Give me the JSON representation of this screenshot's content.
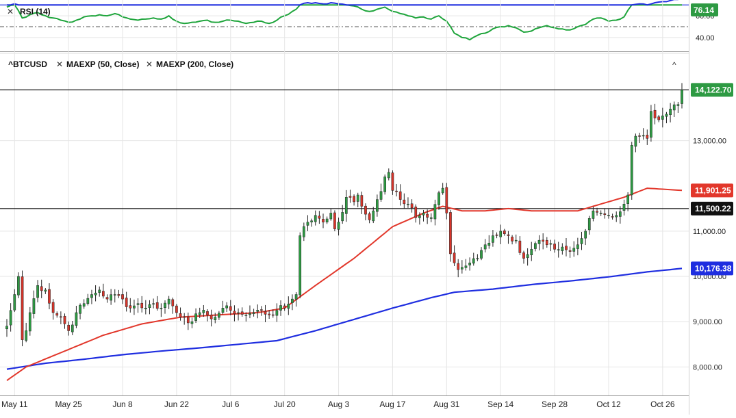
{
  "rsi_panel": {
    "title": "RSI (14)",
    "close_icon": "close-icon",
    "value_label": "76.14",
    "ticks": [
      {
        "v": 60,
        "label": "60.00"
      },
      {
        "v": 40,
        "label": "40.00"
      }
    ],
    "overbought": 70,
    "midline": 50,
    "range": [
      28,
      72
    ]
  },
  "price_panel": {
    "symbol": "^BTCUSD",
    "indicators": [
      {
        "icon": "close-icon",
        "label": "MAEXP (50, Close)"
      },
      {
        "icon": "close-icon",
        "label": "MAEXP (200, Close)"
      }
    ],
    "collapse_icon": "chevron-up-icon",
    "ylim": [
      7400,
      14900
    ],
    "y_ticks": [
      {
        "v": 13000,
        "label": "13,000.00"
      },
      {
        "v": 11000,
        "label": "11,000.00"
      },
      {
        "v": 10000,
        "label": "10,000.00"
      },
      {
        "v": 9000,
        "label": "9,000.00"
      },
      {
        "v": 8000,
        "label": "8,000.00"
      }
    ],
    "last_price": {
      "v": 14122.7,
      "label": "14,122.70",
      "color": "#2e9a43"
    },
    "ema50_label": {
      "v": 11901.25,
      "label": "11,901.25",
      "color": "#e2372b"
    },
    "level_label": {
      "v": 11500.22,
      "label": "11,500.22",
      "color": "#111111"
    },
    "ema200_label": {
      "v": 10176.38,
      "label": "10,176.38",
      "color": "#1f2ee0"
    },
    "horizontal_lines": [
      14122.7,
      11500.22
    ]
  },
  "x_axis": {
    "labels": [
      {
        "i": 2,
        "label": "May 11"
      },
      {
        "i": 16,
        "label": "May 25"
      },
      {
        "i": 30,
        "label": "Jun 8"
      },
      {
        "i": 44,
        "label": "Jun 22"
      },
      {
        "i": 58,
        "label": "Jul 6"
      },
      {
        "i": 72,
        "label": "Jul 20"
      },
      {
        "i": 86,
        "label": "Aug 3"
      },
      {
        "i": 100,
        "label": "Aug 17"
      },
      {
        "i": 114,
        "label": "Aug 31"
      },
      {
        "i": 128,
        "label": "Sep 14"
      },
      {
        "i": 142,
        "label": "Sep 28"
      },
      {
        "i": 156,
        "label": "Oct 12"
      },
      {
        "i": 170,
        "label": "Oct 26"
      }
    ]
  },
  "colors": {
    "up": "#2e9a43",
    "down": "#d8342a",
    "rsi": "#1fa53c",
    "rsi_over": "#1f2ee0",
    "ema50": "#e2372b",
    "ema200": "#1f2ee0",
    "grid": "#e5e5e5"
  },
  "chart_data": {
    "type": "candlestick",
    "title": "^BTCUSD",
    "series_names": [
      "MAEXP (50, Close)",
      "MAEXP (200, Close)"
    ],
    "close_keyframes": [
      [
        0,
        8900
      ],
      [
        2,
        9600
      ],
      [
        3,
        10000
      ],
      [
        4,
        8600
      ],
      [
        5,
        8800
      ],
      [
        6,
        9200
      ],
      [
        8,
        9800
      ],
      [
        10,
        9700
      ],
      [
        12,
        9200
      ],
      [
        14,
        9100
      ],
      [
        16,
        8800
      ],
      [
        18,
        9200
      ],
      [
        20,
        9400
      ],
      [
        22,
        9600
      ],
      [
        24,
        9700
      ],
      [
        26,
        9500
      ],
      [
        28,
        9600
      ],
      [
        30,
        9500
      ],
      [
        32,
        9300
      ],
      [
        34,
        9400
      ],
      [
        36,
        9300
      ],
      [
        38,
        9400
      ],
      [
        40,
        9300
      ],
      [
        42,
        9500
      ],
      [
        44,
        9200
      ],
      [
        46,
        9100
      ],
      [
        48,
        9000
      ],
      [
        50,
        9200
      ],
      [
        52,
        9150
      ],
      [
        54,
        9100
      ],
      [
        56,
        9300
      ],
      [
        58,
        9250
      ],
      [
        60,
        9200
      ],
      [
        62,
        9150
      ],
      [
        64,
        9200
      ],
      [
        66,
        9250
      ],
      [
        68,
        9150
      ],
      [
        70,
        9250
      ],
      [
        72,
        9300
      ],
      [
        74,
        9500
      ],
      [
        75,
        9600
      ],
      [
        76,
        10900
      ],
      [
        77,
        11100
      ],
      [
        78,
        11200
      ],
      [
        80,
        11350
      ],
      [
        82,
        11200
      ],
      [
        84,
        11400
      ],
      [
        85,
        11050
      ],
      [
        86,
        11200
      ],
      [
        88,
        11750
      ],
      [
        90,
        11650
      ],
      [
        91,
        11800
      ],
      [
        92,
        11550
      ],
      [
        94,
        11250
      ],
      [
        96,
        11700
      ],
      [
        98,
        12200
      ],
      [
        99,
        12300
      ],
      [
        100,
        11900
      ],
      [
        102,
        11700
      ],
      [
        104,
        11600
      ],
      [
        106,
        11300
      ],
      [
        108,
        11400
      ],
      [
        110,
        11300
      ],
      [
        112,
        11850
      ],
      [
        113,
        11950
      ],
      [
        114,
        11400
      ],
      [
        115,
        10500
      ],
      [
        116,
        10300
      ],
      [
        117,
        10150
      ],
      [
        118,
        10200
      ],
      [
        120,
        10300
      ],
      [
        122,
        10400
      ],
      [
        124,
        10700
      ],
      [
        126,
        10900
      ],
      [
        128,
        11000
      ],
      [
        130,
        10900
      ],
      [
        132,
        10800
      ],
      [
        134,
        10400
      ],
      [
        136,
        10600
      ],
      [
        138,
        10800
      ],
      [
        140,
        10700
      ],
      [
        142,
        10600
      ],
      [
        144,
        10650
      ],
      [
        146,
        10550
      ],
      [
        148,
        10700
      ],
      [
        150,
        11000
      ],
      [
        152,
        11450
      ],
      [
        154,
        11400
      ],
      [
        156,
        11350
      ],
      [
        158,
        11350
      ],
      [
        160,
        11600
      ],
      [
        161,
        11800
      ],
      [
        162,
        12900
      ],
      [
        163,
        13100
      ],
      [
        164,
        13100
      ],
      [
        166,
        13050
      ],
      [
        167,
        13650
      ],
      [
        168,
        13500
      ],
      [
        170,
        13550
      ],
      [
        172,
        13700
      ],
      [
        174,
        13800
      ],
      [
        175,
        14122.7
      ]
    ],
    "ema50_keyframes": [
      [
        0,
        7700
      ],
      [
        5,
        8000
      ],
      [
        15,
        8350
      ],
      [
        25,
        8700
      ],
      [
        35,
        8950
      ],
      [
        45,
        9100
      ],
      [
        55,
        9150
      ],
      [
        65,
        9200
      ],
      [
        72,
        9300
      ],
      [
        80,
        9800
      ],
      [
        90,
        10400
      ],
      [
        100,
        11100
      ],
      [
        108,
        11400
      ],
      [
        113,
        11550
      ],
      [
        118,
        11450
      ],
      [
        124,
        11450
      ],
      [
        130,
        11500
      ],
      [
        136,
        11450
      ],
      [
        142,
        11450
      ],
      [
        148,
        11450
      ],
      [
        154,
        11600
      ],
      [
        160,
        11750
      ],
      [
        166,
        11950
      ],
      [
        175,
        11901.25
      ]
    ],
    "ema200_keyframes": [
      [
        0,
        7950
      ],
      [
        10,
        8080
      ],
      [
        20,
        8170
      ],
      [
        30,
        8270
      ],
      [
        40,
        8350
      ],
      [
        50,
        8420
      ],
      [
        60,
        8500
      ],
      [
        70,
        8580
      ],
      [
        80,
        8800
      ],
      [
        90,
        9050
      ],
      [
        100,
        9300
      ],
      [
        110,
        9530
      ],
      [
        116,
        9650
      ],
      [
        126,
        9720
      ],
      [
        136,
        9820
      ],
      [
        146,
        9900
      ],
      [
        156,
        9990
      ],
      [
        166,
        10100
      ],
      [
        175,
        10176.38
      ]
    ],
    "rsi_keyframes": [
      [
        0,
        68
      ],
      [
        2,
        71
      ],
      [
        4,
        58
      ],
      [
        6,
        61
      ],
      [
        8,
        63
      ],
      [
        10,
        60
      ],
      [
        12,
        58
      ],
      [
        14,
        56
      ],
      [
        16,
        54
      ],
      [
        18,
        56
      ],
      [
        20,
        59
      ],
      [
        22,
        60
      ],
      [
        24,
        61
      ],
      [
        26,
        60
      ],
      [
        28,
        62
      ],
      [
        30,
        59
      ],
      [
        32,
        57
      ],
      [
        34,
        56
      ],
      [
        36,
        57
      ],
      [
        38,
        58
      ],
      [
        40,
        57
      ],
      [
        42,
        60
      ],
      [
        44,
        55
      ],
      [
        46,
        53
      ],
      [
        48,
        54
      ],
      [
        50,
        55
      ],
      [
        52,
        56
      ],
      [
        54,
        54
      ],
      [
        56,
        55
      ],
      [
        58,
        56
      ],
      [
        60,
        55
      ],
      [
        62,
        53
      ],
      [
        64,
        54
      ],
      [
        66,
        55
      ],
      [
        68,
        53
      ],
      [
        70,
        56
      ],
      [
        72,
        60
      ],
      [
        74,
        64
      ],
      [
        75,
        66
      ],
      [
        76,
        70
      ],
      [
        78,
        72
      ],
      [
        80,
        72
      ],
      [
        82,
        71
      ],
      [
        84,
        72
      ],
      [
        86,
        71
      ],
      [
        88,
        70
      ],
      [
        90,
        69
      ],
      [
        92,
        66
      ],
      [
        94,
        64
      ],
      [
        96,
        66
      ],
      [
        98,
        68
      ],
      [
        100,
        64
      ],
      [
        102,
        62
      ],
      [
        104,
        60
      ],
      [
        106,
        58
      ],
      [
        108,
        59
      ],
      [
        110,
        57
      ],
      [
        112,
        60
      ],
      [
        114,
        55
      ],
      [
        116,
        44
      ],
      [
        118,
        40
      ],
      [
        120,
        38
      ],
      [
        122,
        42
      ],
      [
        124,
        44
      ],
      [
        126,
        48
      ],
      [
        128,
        50
      ],
      [
        130,
        51
      ],
      [
        132,
        49
      ],
      [
        134,
        45
      ],
      [
        136,
        46
      ],
      [
        138,
        49
      ],
      [
        140,
        51
      ],
      [
        142,
        49
      ],
      [
        144,
        48
      ],
      [
        146,
        47
      ],
      [
        148,
        50
      ],
      [
        150,
        52
      ],
      [
        152,
        57
      ],
      [
        154,
        58
      ],
      [
        156,
        55
      ],
      [
        158,
        56
      ],
      [
        160,
        59
      ],
      [
        162,
        70
      ],
      [
        164,
        71
      ],
      [
        166,
        70
      ],
      [
        168,
        72
      ],
      [
        170,
        73
      ],
      [
        172,
        74
      ],
      [
        174,
        75
      ],
      [
        175,
        76.14
      ]
    ]
  }
}
